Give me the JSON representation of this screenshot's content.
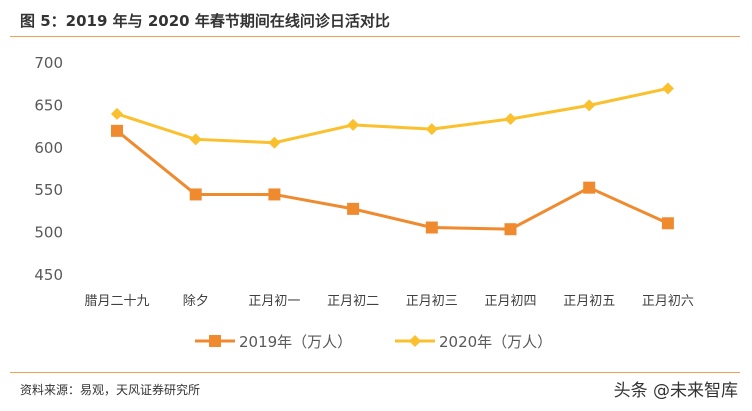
{
  "title": "图 5：2019 年与 2020 年春节期间在线问诊日活对比",
  "source": "资料来源：易观，天风证券研究所",
  "watermark": "头条 @未来智库",
  "colors": {
    "series_2019": "#f08a2e",
    "series_2020": "#fbc02d",
    "rule": "#f0a050"
  },
  "chart_data": {
    "type": "line",
    "title": "",
    "xlabel": "",
    "ylabel": "",
    "categories": [
      "腊月二十九",
      "除夕",
      "正月初一",
      "正月初二",
      "正月初三",
      "正月初四",
      "正月初五",
      "正月初六"
    ],
    "ylim": [
      450,
      700
    ],
    "yticks": [
      "450",
      "500",
      "550",
      "600",
      "650",
      "700"
    ],
    "grid": false,
    "legend_position": "bottom",
    "series": [
      {
        "name": "2019年（万人）",
        "marker": "square",
        "values": [
          620,
          545,
          545,
          528,
          506,
          504,
          553,
          511
        ]
      },
      {
        "name": "2020年（万人）",
        "marker": "diamond",
        "values": [
          640,
          610,
          606,
          627,
          622,
          634,
          650,
          670
        ]
      }
    ]
  }
}
